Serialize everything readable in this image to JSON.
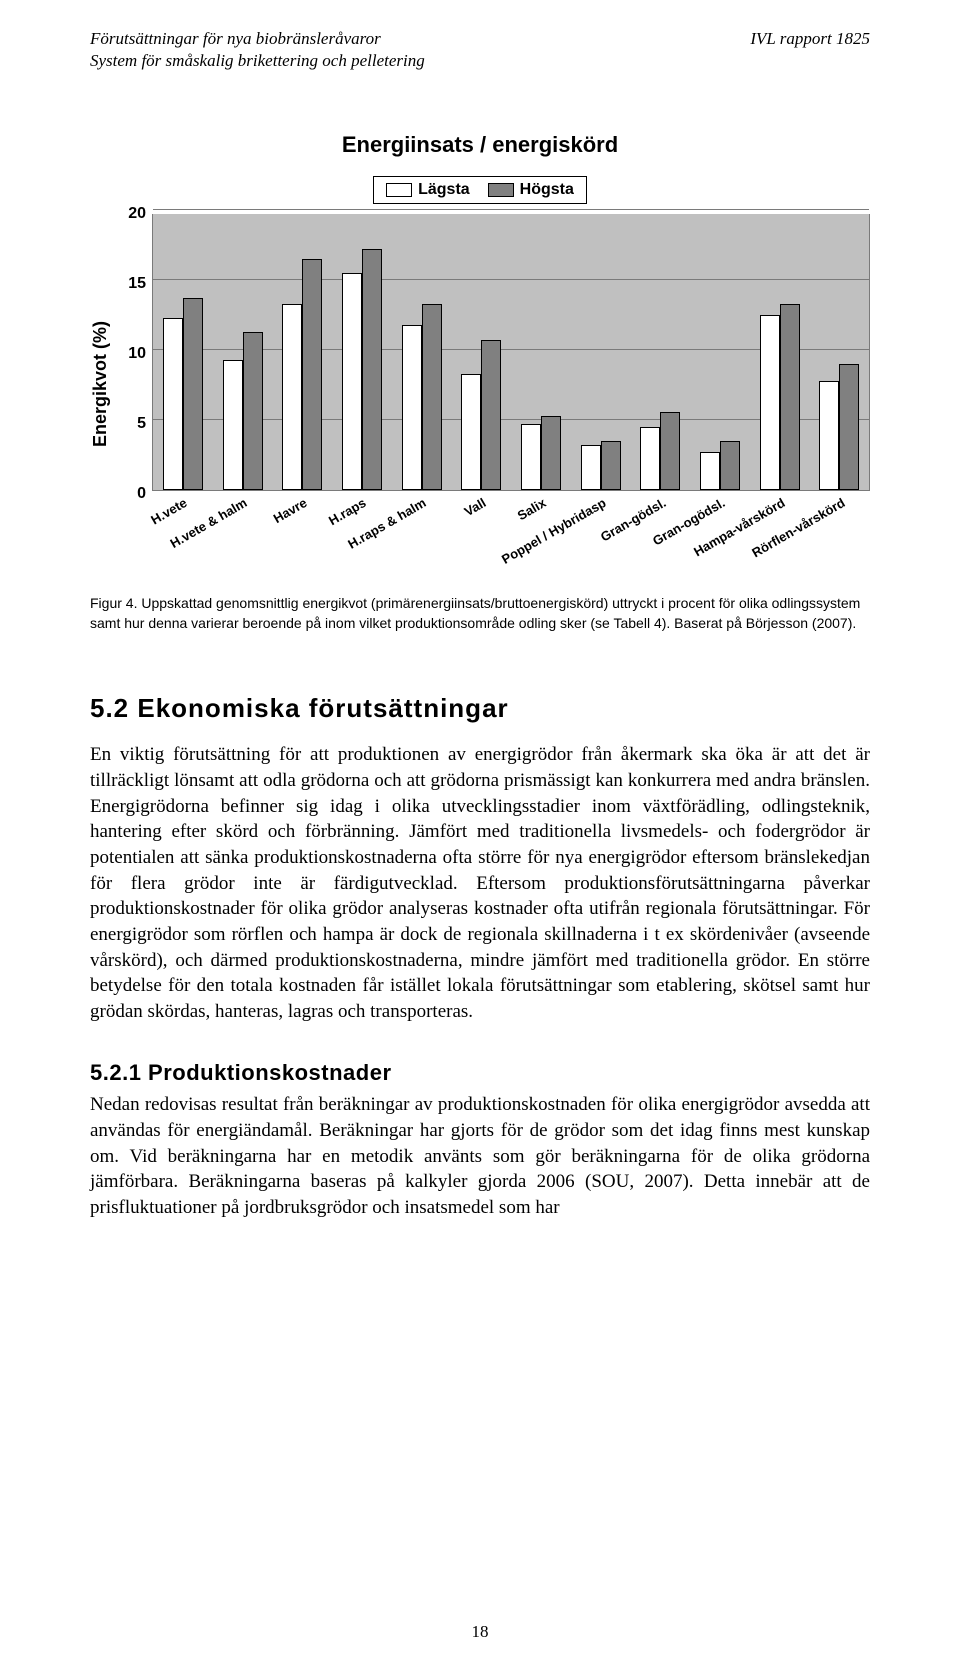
{
  "header": {
    "left_line1": "Förutsättningar för nya biobränsleråvaror",
    "left_line2": "System för småskalig brikettering och pelletering",
    "right": "IVL rapport 1825"
  },
  "chart": {
    "type": "bar",
    "title": "Energiinsats / energiskörd",
    "ylabel": "Energikvot (%)",
    "ymax": 20,
    "ytick_step": 5,
    "yticks": [
      "20",
      "15",
      "10",
      "5",
      "0"
    ],
    "background_color": "#c0c0c0",
    "grid_color": "#7a7a7a",
    "legend": [
      {
        "label": "Lägsta",
        "color": "#ffffff"
      },
      {
        "label": "Högsta",
        "color": "#808080"
      }
    ],
    "categories": [
      "H.vete",
      "H.vete & halm",
      "Havre",
      "H.raps",
      "H.raps & halm",
      "Vall",
      "Salix",
      "Poppel / Hybridasp",
      "Gran-gödsl.",
      "Gran-ogödsl.",
      "Hampa-vårskörd",
      "Rörflen-vårskörd"
    ],
    "series": {
      "lagsta": [
        12.3,
        9.3,
        13.3,
        15.5,
        11.8,
        8.3,
        4.7,
        3.2,
        4.5,
        2.7,
        12.5,
        7.8
      ],
      "hogsta": [
        13.7,
        11.3,
        16.5,
        17.2,
        13.3,
        10.7,
        5.3,
        3.5,
        5.6,
        3.5,
        13.3,
        9.0
      ]
    },
    "bar_colors": {
      "lagsta": "#ffffff",
      "hogsta": "#808080"
    },
    "bar_border": "#000000"
  },
  "caption": "Figur 4. Uppskattad genomsnittlig energikvot (primärenergiinsats/bruttoenergiskörd) uttryckt i procent för olika odlingssystem samt hur denna varierar beroende på inom vilket produktionsområde odling sker (se Tabell 4). Baserat på Börjesson (2007).",
  "section_heading": "5.2 Ekonomiska förutsättningar",
  "section_body": "En viktig förutsättning för att produktionen av energigrödor från åkermark ska öka är att det är tillräckligt lönsamt att odla grödorna och att grödorna prismässigt kan konkurrera med andra bränslen. Energigrödorna befinner sig idag i olika utvecklingsstadier inom växtförädling, odlingsteknik, hantering efter skörd och förbränning. Jämfört med traditionella livsmedels- och fodergrödor är potentialen att sänka produktionskostnaderna ofta större för nya energigrödor eftersom bränslekedjan för flera grödor inte är färdigutvecklad. Eftersom produktionsförutsättningarna påverkar produktionskostnader för olika grödor analyseras kostnader ofta utifrån regionala förutsättningar. För energigrödor som rörflen och hampa är dock de regionala skillnaderna i t ex skördenivåer (avseende vårskörd), och därmed produktionskostnaderna, mindre jämfört med traditionella grödor. En större betydelse för den totala kostnaden får istället lokala förutsättningar som etablering, skötsel samt hur grödan skördas, hanteras, lagras och transporteras.",
  "subsection_heading": "5.2.1 Produktionskostnader",
  "subsection_body": "Nedan redovisas resultat från beräkningar av produktionskostnaden för olika energigrödor avsedda att användas för energiändamål. Beräkningar har gjorts för de grödor som det idag finns mest kunskap om. Vid beräkningarna har en metodik använts som gör beräkningarna för de olika grödorna jämförbara. Beräkningarna baseras på kalkyler gjorda 2006 (SOU, 2007). Detta innebär att de prisfluktuationer på jordbruksgrödor och insatsmedel som har",
  "page_number": "18"
}
